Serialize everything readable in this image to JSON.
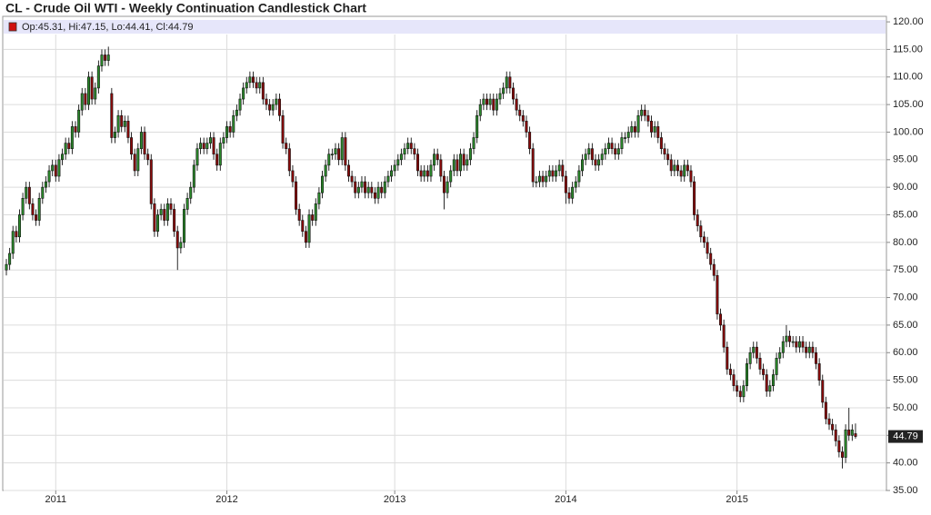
{
  "chart_data": {
    "type": "candlestick",
    "title": "CL - Crude Oil WTI - Weekly Continuation Candlestick Chart",
    "legend": {
      "labels": [
        "Op:",
        "Hi:",
        "Lo:",
        "Cl:"
      ],
      "separator": ", "
    },
    "up_color": "#2b8a2b",
    "down_color": "#8b0a0a",
    "grid": true,
    "ylim": [
      35,
      121
    ],
    "yticks": [
      {
        "value": 35,
        "label": "35.00"
      },
      {
        "value": 40,
        "label": "40.00"
      },
      {
        "value": 45,
        "label": "45.00"
      },
      {
        "value": 50,
        "label": "50.00"
      },
      {
        "value": 55,
        "label": "55.00"
      },
      {
        "value": 60,
        "label": "60.00"
      },
      {
        "value": 65,
        "label": "65.00"
      },
      {
        "value": 70,
        "label": "70.00"
      },
      {
        "value": 75,
        "label": "75.00"
      },
      {
        "value": 80,
        "label": "80.00"
      },
      {
        "value": 85,
        "label": "85.00"
      },
      {
        "value": 90,
        "label": "90.00"
      },
      {
        "value": 95,
        "label": "95.00"
      },
      {
        "value": 100,
        "label": "100.00"
      },
      {
        "value": 105,
        "label": "105.00"
      },
      {
        "value": 110,
        "label": "110.00"
      },
      {
        "value": 115,
        "label": "115.00"
      },
      {
        "value": 120,
        "label": "120.00"
      }
    ],
    "categories": [
      null,
      null,
      null,
      null,
      null,
      null,
      null,
      null,
      null,
      null,
      null,
      null,
      null,
      null,
      null,
      "2011",
      null,
      null,
      null,
      null,
      null,
      null,
      null,
      null,
      null,
      null,
      null,
      null,
      null,
      null,
      null,
      null,
      null,
      null,
      null,
      null,
      null,
      null,
      null,
      null,
      null,
      null,
      null,
      null,
      null,
      null,
      null,
      null,
      null,
      null,
      null,
      null,
      null,
      null,
      null,
      null,
      null,
      null,
      null,
      null,
      null,
      null,
      null,
      null,
      null,
      null,
      null,
      "2012",
      null,
      null,
      null,
      null,
      null,
      null,
      null,
      null,
      null,
      null,
      null,
      null,
      null,
      null,
      null,
      null,
      null,
      null,
      null,
      null,
      null,
      null,
      null,
      null,
      null,
      null,
      null,
      null,
      null,
      null,
      null,
      null,
      null,
      null,
      null,
      null,
      null,
      null,
      null,
      null,
      null,
      null,
      null,
      null,
      null,
      null,
      null,
      null,
      null,
      null,
      "2013",
      null,
      null,
      null,
      null,
      null,
      null,
      null,
      null,
      null,
      null,
      null,
      null,
      null,
      null,
      null,
      null,
      null,
      null,
      null,
      null,
      null,
      null,
      null,
      null,
      null,
      null,
      null,
      null,
      null,
      null,
      null,
      null,
      null,
      null,
      null,
      null,
      null,
      null,
      null,
      null,
      null,
      null,
      null,
      null,
      null,
      null,
      null,
      null,
      null,
      null,
      null,
      "2014",
      null,
      null,
      null,
      null,
      null,
      null,
      null,
      null,
      null,
      null,
      null,
      null,
      null,
      null,
      null,
      null,
      null,
      null,
      null,
      null,
      null,
      null,
      null,
      null,
      null,
      null,
      null,
      null,
      null,
      null,
      null,
      null,
      null,
      null,
      null,
      null,
      null,
      null,
      null,
      null,
      null,
      null,
      null,
      null,
      null,
      null,
      null,
      null,
      null,
      null,
      null,
      "2015",
      null,
      null,
      null,
      null,
      null,
      null,
      null,
      null,
      null,
      null,
      null,
      null,
      null,
      null,
      null,
      null,
      null,
      null,
      null,
      null,
      null,
      null,
      null,
      null,
      null,
      null,
      null,
      null,
      null,
      null,
      null,
      null,
      null,
      null,
      null,
      null
    ],
    "open": [
      75,
      76,
      78,
      82,
      81,
      85,
      88,
      90,
      87,
      85,
      84,
      88,
      90,
      91,
      93,
      94,
      92,
      95,
      96,
      98,
      97,
      101,
      100,
      104,
      107,
      105,
      110,
      106,
      108,
      112,
      114,
      113,
      107,
      99,
      100,
      103,
      101,
      102,
      99,
      96,
      93,
      97,
      100,
      96,
      95,
      87,
      82,
      85,
      86,
      84,
      87,
      86,
      82,
      79,
      80,
      86,
      88,
      90,
      94,
      97,
      98,
      97,
      98,
      99,
      96,
      94,
      98,
      99,
      101,
      100,
      103,
      104,
      106,
      108,
      109,
      110,
      109,
      108,
      109,
      106,
      105,
      104,
      105,
      106,
      103,
      98,
      97,
      93,
      91,
      86,
      84,
      82,
      80,
      85,
      84,
      87,
      89,
      92,
      94,
      96,
      96,
      97,
      95,
      99,
      94,
      92,
      91,
      89,
      90,
      91,
      89,
      90,
      89,
      88,
      90,
      89,
      91,
      92,
      93,
      94,
      95,
      96,
      97,
      98,
      97,
      96,
      93,
      92,
      93,
      92,
      94,
      96,
      95,
      92,
      89,
      91,
      93,
      95,
      93,
      96,
      94,
      95,
      97,
      99,
      103,
      105,
      106,
      105,
      106,
      104,
      106,
      107,
      108,
      110,
      108,
      106,
      104,
      103,
      102,
      100,
      97,
      91,
      91,
      92,
      91,
      92,
      93,
      92,
      93,
      94,
      92,
      89,
      88,
      90,
      91,
      93,
      95,
      96,
      97,
      95,
      94,
      95,
      96,
      97,
      98,
      97,
      96,
      97,
      99,
      99,
      100,
      101,
      100,
      103,
      104,
      103,
      102,
      100,
      101,
      99,
      97,
      96,
      95,
      93,
      94,
      93,
      92,
      94,
      93,
      91,
      85,
      83,
      81,
      80,
      78,
      76,
      74,
      67,
      65,
      61,
      57,
      56,
      54,
      53,
      52,
      54,
      58,
      60,
      61,
      59,
      57,
      56,
      53,
      54,
      56,
      59,
      60,
      62,
      63,
      62,
      62,
      61,
      62,
      61,
      60,
      61,
      60,
      58,
      55,
      51,
      48,
      47,
      46,
      44,
      42,
      41,
      46,
      45,
      45.31
    ],
    "high": [
      77,
      79,
      83,
      83,
      86,
      89,
      91,
      91,
      88,
      86,
      89,
      91,
      92,
      94,
      95,
      95,
      96,
      97,
      99,
      99,
      102,
      102,
      105,
      108,
      108,
      111,
      111,
      109,
      113,
      115,
      115,
      115.5,
      108,
      101,
      104,
      104,
      103,
      103,
      100,
      97,
      98,
      101,
      101,
      97,
      96,
      88,
      86,
      87,
      87,
      88,
      88,
      87,
      83,
      81,
      87,
      89,
      91,
      95,
      98,
      99,
      99,
      99,
      100,
      100,
      97,
      99,
      100,
      102,
      102,
      104,
      105,
      107,
      109,
      110,
      111,
      111,
      110,
      110,
      110,
      107,
      106,
      106,
      107,
      107,
      104,
      99,
      98,
      94,
      92,
      87,
      85,
      83,
      86,
      86,
      88,
      90,
      93,
      95,
      97,
      97,
      98,
      98,
      100,
      100,
      95,
      93,
      92,
      91,
      92,
      92,
      91,
      91,
      90,
      91,
      91,
      92,
      93,
      94,
      95,
      96,
      97,
      98,
      99,
      99,
      98,
      97,
      94,
      94,
      94,
      95,
      97,
      97,
      96,
      93,
      92,
      94,
      96,
      96,
      97,
      97,
      96,
      98,
      100,
      104,
      106,
      107,
      107,
      107,
      107,
      107,
      108,
      109,
      111,
      111,
      109,
      107,
      105,
      104,
      103,
      101,
      98,
      92,
      93,
      93,
      93,
      94,
      94,
      94,
      95,
      95,
      93,
      90,
      91,
      92,
      94,
      96,
      97,
      98,
      98,
      96,
      96,
      97,
      98,
      99,
      99,
      98,
      98,
      100,
      100,
      101,
      102,
      102,
      104,
      105,
      105,
      104,
      103,
      102,
      102,
      100,
      98,
      97,
      96,
      95,
      95,
      94,
      95,
      95,
      94,
      92,
      86,
      84,
      82,
      81,
      79,
      77,
      75,
      68,
      66,
      62,
      58,
      57,
      55,
      54,
      55,
      59,
      61,
      62,
      62,
      60,
      58,
      57,
      55,
      57,
      60,
      61,
      63,
      65,
      64,
      63,
      63,
      63,
      63,
      62,
      62,
      62,
      61,
      59,
      56,
      52,
      49,
      48,
      47,
      45,
      43,
      47,
      50,
      47,
      47.15
    ],
    "low": [
      74,
      75,
      77,
      80,
      80,
      84,
      87,
      86,
      84,
      83,
      83,
      87,
      89,
      90,
      92,
      91,
      91,
      94,
      95,
      96,
      96,
      99,
      99,
      103,
      104,
      104,
      105,
      105,
      107,
      111,
      112,
      112,
      98,
      98,
      99,
      100,
      100,
      98,
      95,
      92,
      92,
      96,
      95,
      94,
      86,
      81,
      81,
      84,
      83,
      83,
      85,
      81,
      75,
      78,
      79,
      85,
      87,
      89,
      93,
      96,
      96,
      96,
      97,
      95,
      93,
      93,
      97,
      98,
      99,
      99,
      102,
      103,
      105,
      107,
      108,
      108,
      107,
      107,
      105,
      104,
      103,
      103,
      104,
      102,
      97,
      96,
      92,
      90,
      85,
      83,
      81,
      79,
      79,
      83,
      83,
      86,
      88,
      91,
      93,
      95,
      95,
      94,
      94,
      93,
      91,
      90,
      88,
      88,
      89,
      88,
      88,
      88,
      87,
      87,
      88,
      88,
      90,
      91,
      92,
      93,
      94,
      95,
      96,
      96,
      95,
      92,
      91,
      91,
      91,
      91,
      93,
      94,
      91,
      86,
      88,
      90,
      92,
      92,
      92,
      93,
      93,
      94,
      96,
      98,
      102,
      104,
      104,
      104,
      103,
      103,
      105,
      106,
      107,
      107,
      105,
      103,
      102,
      101,
      99,
      96,
      90,
      90,
      90,
      90,
      90,
      91,
      91,
      91,
      92,
      91,
      87,
      87,
      87,
      89,
      90,
      92,
      94,
      95,
      94,
      93,
      93,
      94,
      95,
      96,
      96,
      95,
      95,
      96,
      98,
      98,
      99,
      99,
      99,
      102,
      102,
      101,
      99,
      99,
      98,
      96,
      95,
      94,
      92,
      92,
      92,
      91,
      91,
      92,
      90,
      84,
      82,
      80,
      79,
      77,
      75,
      73,
      66,
      64,
      60,
      56,
      55,
      53,
      52,
      51,
      51,
      53,
      57,
      59,
      58,
      56,
      55,
      52,
      52,
      53,
      55,
      58,
      59,
      61,
      61,
      61,
      60,
      60,
      60,
      59,
      59,
      59,
      57,
      54,
      50,
      47,
      46,
      45,
      43,
      41,
      39,
      40,
      44,
      44,
      44.41
    ],
    "close": [
      76,
      78,
      82,
      81,
      85,
      88,
      90,
      87,
      85,
      84,
      88,
      90,
      91,
      93,
      94,
      92,
      95,
      96,
      98,
      97,
      101,
      100,
      104,
      107,
      105,
      110,
      106,
      108,
      112,
      114,
      113,
      114,
      99,
      100,
      103,
      101,
      102,
      99,
      96,
      93,
      97,
      100,
      96,
      95,
      87,
      82,
      85,
      86,
      84,
      87,
      86,
      82,
      79,
      80,
      86,
      88,
      90,
      94,
      97,
      98,
      97,
      98,
      99,
      96,
      94,
      98,
      99,
      101,
      100,
      103,
      104,
      106,
      108,
      109,
      110,
      109,
      108,
      109,
      106,
      105,
      104,
      105,
      106,
      103,
      98,
      97,
      93,
      91,
      86,
      84,
      82,
      80,
      85,
      84,
      87,
      89,
      92,
      94,
      96,
      96,
      97,
      95,
      99,
      94,
      92,
      91,
      89,
      90,
      91,
      89,
      90,
      89,
      88,
      90,
      89,
      91,
      92,
      93,
      94,
      95,
      96,
      97,
      98,
      97,
      96,
      93,
      92,
      93,
      92,
      94,
      96,
      95,
      92,
      89,
      91,
      93,
      95,
      93,
      96,
      94,
      95,
      97,
      99,
      103,
      105,
      106,
      105,
      106,
      104,
      106,
      107,
      108,
      110,
      108,
      106,
      104,
      103,
      102,
      100,
      97,
      91,
      91,
      92,
      91,
      92,
      93,
      92,
      93,
      94,
      92,
      89,
      88,
      90,
      91,
      93,
      95,
      96,
      97,
      95,
      94,
      95,
      96,
      97,
      98,
      97,
      96,
      97,
      99,
      99,
      100,
      101,
      100,
      103,
      104,
      103,
      102,
      100,
      101,
      99,
      97,
      96,
      95,
      93,
      94,
      93,
      92,
      94,
      93,
      91,
      85,
      83,
      81,
      80,
      78,
      76,
      74,
      67,
      65,
      61,
      57,
      56,
      54,
      53,
      52,
      54,
      58,
      60,
      61,
      59,
      57,
      56,
      53,
      54,
      56,
      59,
      60,
      62,
      63,
      62,
      62,
      61,
      62,
      61,
      60,
      61,
      60,
      58,
      55,
      51,
      48,
      47,
      46,
      44,
      42,
      41,
      46,
      45,
      46,
      44.79
    ]
  }
}
